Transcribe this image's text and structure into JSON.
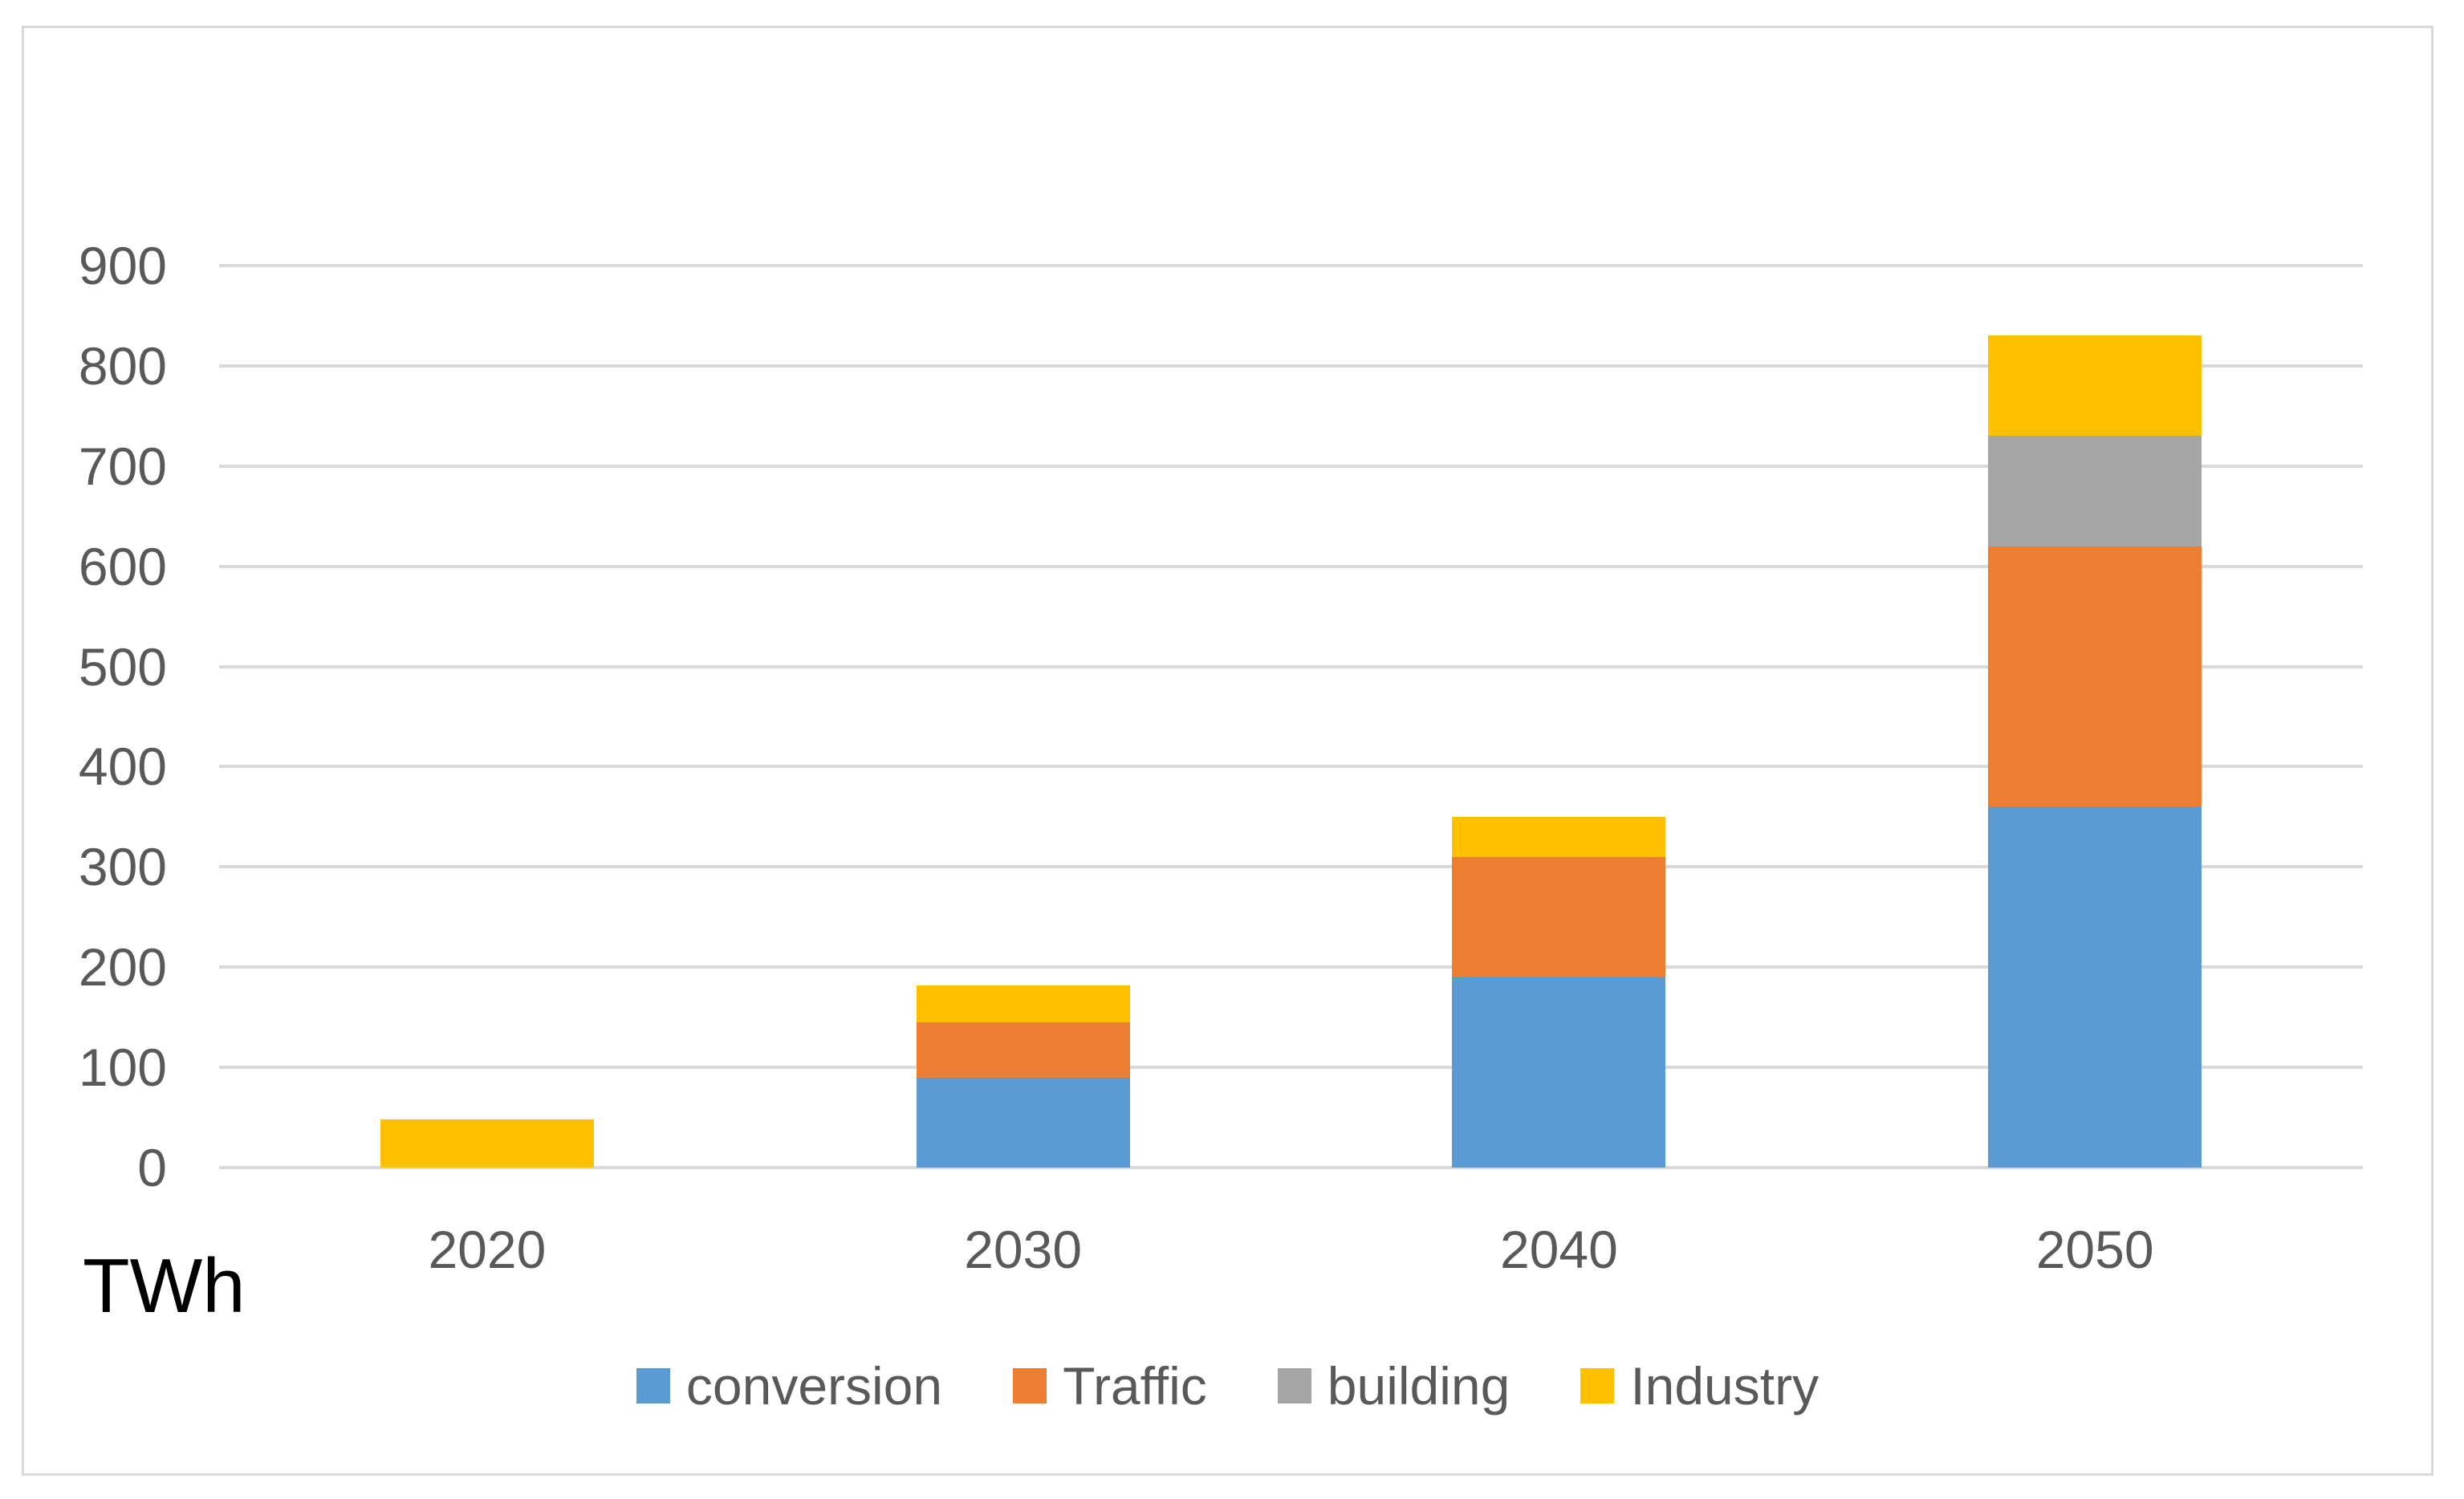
{
  "chart_data": {
    "type": "bar",
    "stacked": true,
    "title": "",
    "ylabel": "TWh",
    "xlabel": "",
    "ylim": [
      0,
      900
    ],
    "y_step": 100,
    "y_ticks": [
      0,
      100,
      200,
      300,
      400,
      500,
      600,
      700,
      800,
      900
    ],
    "grid": true,
    "legend_position": "bottom",
    "categories": [
      "2020",
      "2030",
      "2040",
      "2050"
    ],
    "series": [
      {
        "name": "conversion",
        "color": "#5B9BD5",
        "values": [
          0,
          90,
          190,
          360
        ]
      },
      {
        "name": "Traffic",
        "color": "#ED7D31",
        "values": [
          0,
          55,
          120,
          260
        ]
      },
      {
        "name": "building",
        "color": "#A5A5A5",
        "values": [
          0,
          0,
          0,
          110
        ]
      },
      {
        "name": "Industry",
        "color": "#FFC000",
        "values": [
          48,
          37,
          40,
          100
        ]
      }
    ],
    "totals_by_category": [
      48,
      182,
      350,
      830
    ],
    "grid_color": "#D9D9D9",
    "axis_text_color": "#595959"
  }
}
